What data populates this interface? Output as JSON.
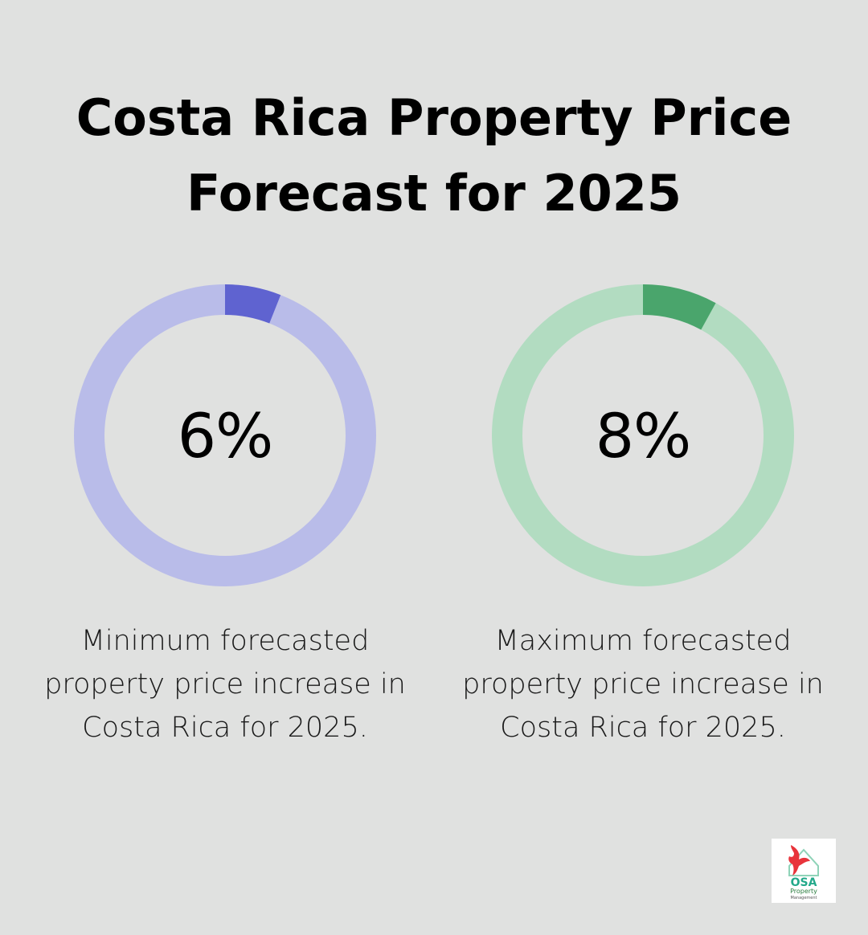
{
  "title": {
    "line1": "Costa Rica Property Price",
    "line2": "Forecast for 2025"
  },
  "colors": {
    "background": "#e0e1e0",
    "min_track": "#b9bce9",
    "min_fill": "#5f63d0",
    "max_track": "#b2dcc1",
    "max_fill": "#4aa56c"
  },
  "logo": {
    "brand": "OSA",
    "sub": "Property",
    "sub2": "Management"
  },
  "chart_data": [
    {
      "type": "donut",
      "value": 6,
      "max": 100,
      "value_label": "6%",
      "caption": "Minimum forecasted property price increase in Costa Rica for 2025.",
      "track_color": "#b9bce9",
      "fill_color": "#5f63d0"
    },
    {
      "type": "donut",
      "value": 8,
      "max": 100,
      "value_label": "8%",
      "caption": "Maximum forecasted property price increase in Costa Rica for 2025.",
      "track_color": "#b2dcc1",
      "fill_color": "#4aa56c"
    }
  ]
}
